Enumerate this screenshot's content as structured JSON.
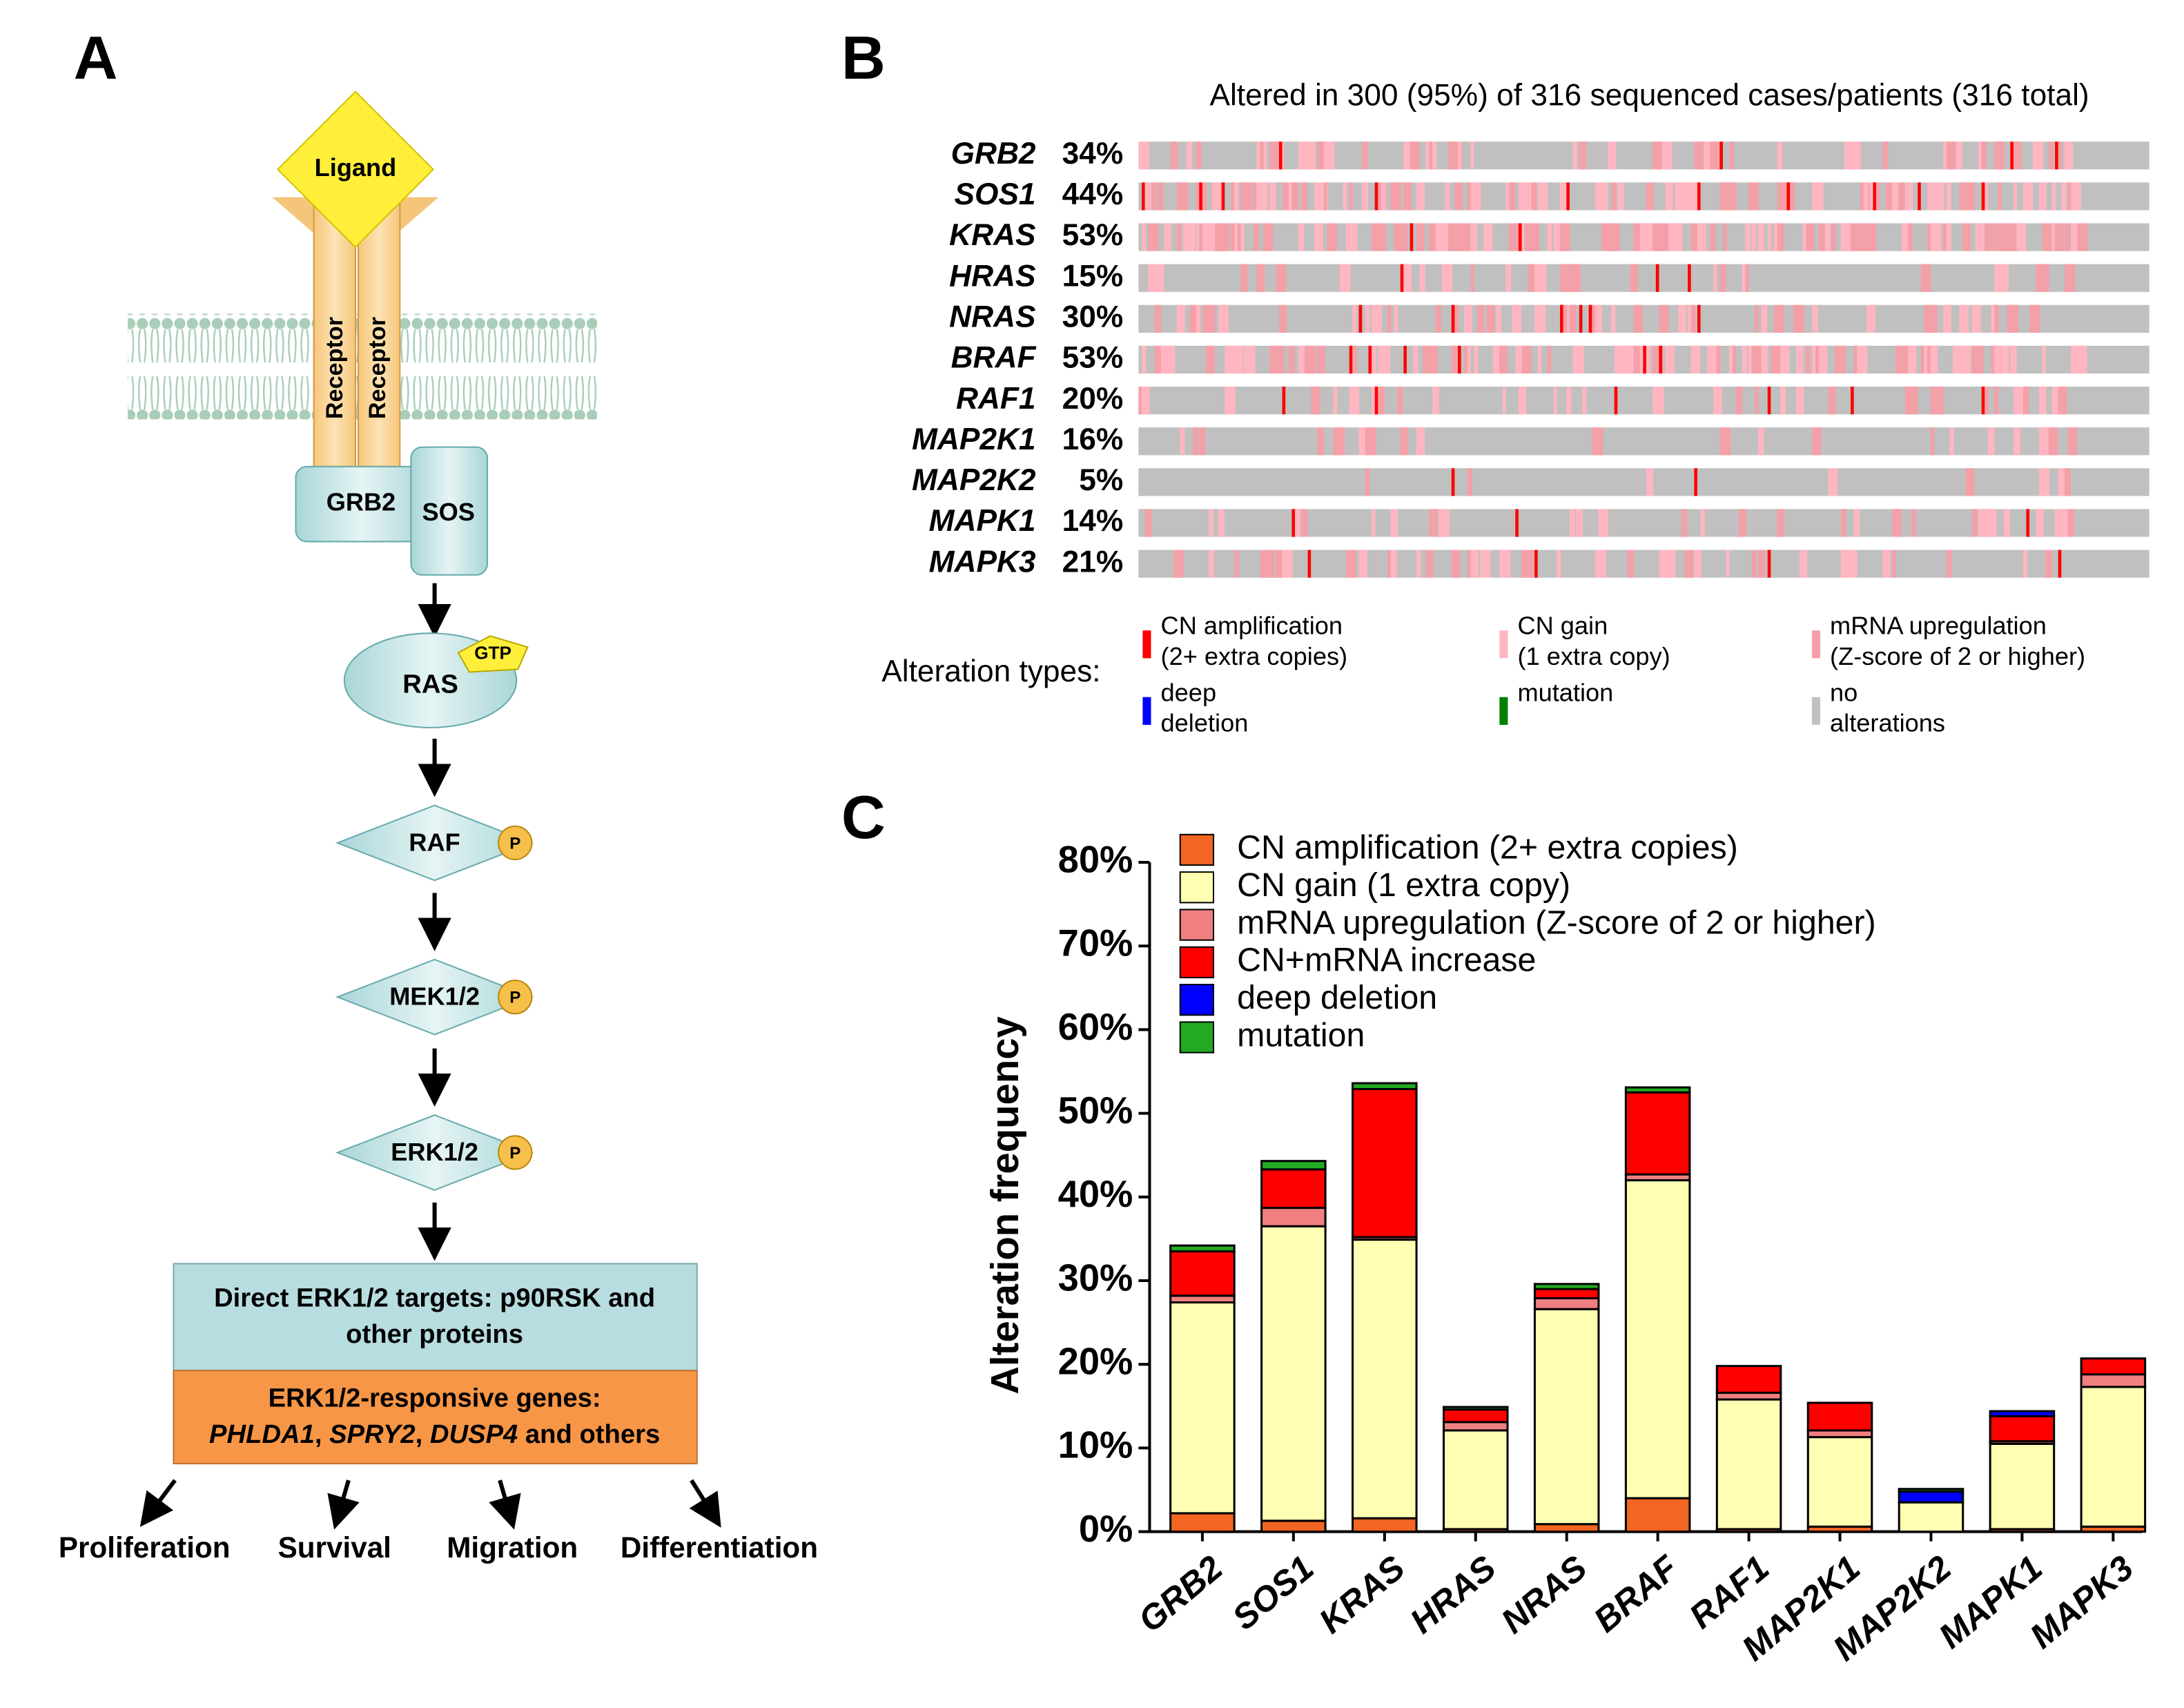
{
  "panel_a": {
    "letter": "A",
    "ligand": "Ligand",
    "receptor_1": "Receptor",
    "receptor_2": "Receptor",
    "grb2": "GRB2",
    "sos": "SOS",
    "gtp": "GTP",
    "ras": "RAS",
    "raf": "RAF",
    "mek": "MEK1/2",
    "erk": "ERK1/2",
    "phospho": "P",
    "targets_box": [
      "Direct ERK1/2 targets: p90RSK and",
      "other proteins"
    ],
    "genes_box_line1": "ERK1/2-responsive genes:",
    "genes_box_line2": [
      {
        "text": "PHLDA1",
        "italic": true
      },
      {
        "text": ", ",
        "italic": false
      },
      {
        "text": "SPRY2",
        "italic": true
      },
      {
        "text": ", ",
        "italic": false
      },
      {
        "text": "DUSP4",
        "italic": true
      },
      {
        "text": " and others",
        "italic": false
      }
    ],
    "outcomes": [
      "Proliferation",
      "Survival",
      "Migration",
      "Differentiation"
    ]
  },
  "panel_b": {
    "letter": "B",
    "title": "Altered in 300 (95%) of 316 sequenced cases/patients (316 total)",
    "rows": [
      {
        "gene": "GRB2",
        "pct": "34%"
      },
      {
        "gene": "SOS1",
        "pct": "44%"
      },
      {
        "gene": "KRAS",
        "pct": "53%"
      },
      {
        "gene": "HRAS",
        "pct": "15%"
      },
      {
        "gene": "NRAS",
        "pct": "30%"
      },
      {
        "gene": "BRAF",
        "pct": "53%"
      },
      {
        "gene": "RAF1",
        "pct": "20%"
      },
      {
        "gene": "MAP2K1",
        "pct": "16%"
      },
      {
        "gene": "MAP2K2",
        "pct": "5%"
      },
      {
        "gene": "MAPK1",
        "pct": "14%"
      },
      {
        "gene": "MAPK3",
        "pct": "21%"
      }
    ],
    "legend_title": "Alteration types:",
    "legend": [
      {
        "lines": [
          "CN amplification",
          "(2+ extra copies)"
        ],
        "color": "#ff0000"
      },
      {
        "lines": [
          "CN gain",
          "(1 extra copy)"
        ],
        "color": "#ffb6c1"
      },
      {
        "lines": [
          "mRNA upregulation",
          "(Z-score of 2 or higher)"
        ],
        "color": "#f4a0a8"
      },
      {
        "lines": [
          "deep",
          "deletion"
        ],
        "color": "#0000ff"
      },
      {
        "lines": [
          "mutation"
        ],
        "color": "#008000"
      },
      {
        "lines": [
          "no",
          "alterations"
        ],
        "color": "#c0c0c0"
      }
    ]
  },
  "chart_data": {
    "type": "stacked_bar",
    "letter": "C",
    "y_label": "Alteration frequency",
    "categories": [
      "GRB2",
      "SOS1",
      "KRAS",
      "HRAS",
      "NRAS",
      "BRAF",
      "RAF1",
      "MAP2K1",
      "MAP2K2",
      "MAPK1",
      "MAPK3"
    ],
    "series": [
      {
        "name": "CN amplification (2+ extra copies)",
        "color": "#f26522",
        "values": [
          2.2,
          1.3,
          1.6,
          0.3,
          0.9,
          4.0,
          0.3,
          0.6,
          0,
          0.3,
          0.6
        ]
      },
      {
        "name": "CN  gain (1 extra copy)",
        "color": "#ffffb3",
        "values": [
          25.2,
          35.2,
          33.3,
          11.8,
          25.7,
          38.0,
          15.5,
          10.7,
          3.5,
          10.2,
          16.7
        ]
      },
      {
        "name": "mRNA upregulation (Z-score of 2 or higher)",
        "color": "#f08080",
        "values": [
          0.8,
          2.2,
          0.3,
          1.0,
          1.3,
          0.7,
          0.8,
          0.8,
          0,
          0.3,
          1.5
        ]
      },
      {
        "name": "CN+mRNA increase",
        "color": "#ff0000",
        "values": [
          5.3,
          4.6,
          17.7,
          1.5,
          1.1,
          9.8,
          3.2,
          3.3,
          0,
          3.0,
          1.9
        ]
      },
      {
        "name": "deep deletion",
        "color": "#0000ff",
        "values": [
          0,
          0,
          0,
          0,
          0,
          0,
          0,
          0,
          1.3,
          0.6,
          0
        ]
      },
      {
        "name": "mutation",
        "color": "#22aa22",
        "values": [
          0.7,
          1.0,
          0.7,
          0.3,
          0.6,
          0.6,
          0,
          0,
          0.3,
          0,
          0
        ]
      }
    ],
    "ylim": [
      0,
      80
    ],
    "yticks": [
      {
        "value": 0,
        "label": "0%"
      },
      {
        "value": 10,
        "label": "10%"
      },
      {
        "value": 20,
        "label": "20%"
      },
      {
        "value": 30,
        "label": "30%"
      },
      {
        "value": 40,
        "label": "40%"
      },
      {
        "value": 50,
        "label": "50%"
      },
      {
        "value": 60,
        "label": "60%"
      },
      {
        "value": 70,
        "label": "70%"
      },
      {
        "value": 80,
        "label": "80%"
      }
    ]
  }
}
